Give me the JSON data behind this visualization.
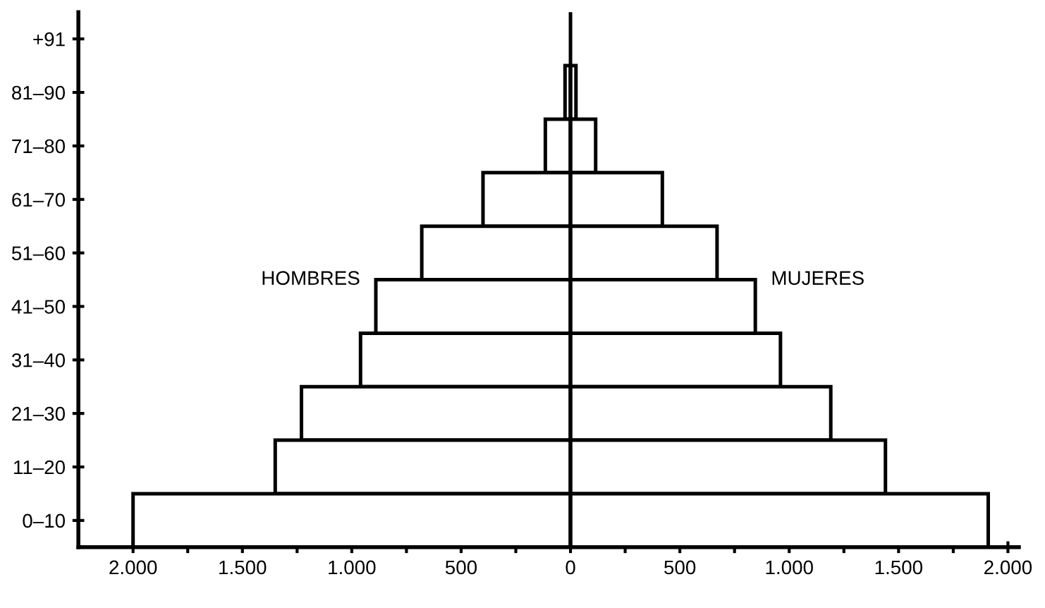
{
  "chart_data": {
    "type": "bar",
    "stacked": true,
    "orientation": "horizontal",
    "categories": [
      "+91",
      "81–90",
      "71–80",
      "61–70",
      "51–60",
      "41–50",
      "31–40",
      "21–30",
      "11–20",
      "0–10"
    ],
    "series": [
      {
        "name": "HOMBRES",
        "color": "#ffffff",
        "values": [
          null,
          -25,
          -115,
          -400,
          -680,
          -890,
          -960,
          -1230,
          -1350,
          -2000
        ]
      },
      {
        "name": "MUJERES",
        "color": "#ffffff",
        "values": [
          null,
          25,
          115,
          420,
          670,
          845,
          960,
          1190,
          1440,
          1910
        ]
      }
    ],
    "xlim": [
      -2250,
      2050
    ],
    "xticks": [
      {
        "value": -2000,
        "label": "2.000"
      },
      {
        "value": -1750,
        "label": null
      },
      {
        "value": -1500,
        "label": "1.500"
      },
      {
        "value": -1250,
        "label": null
      },
      {
        "value": -1000,
        "label": "1.000"
      },
      {
        "value": -750,
        "label": null
      },
      {
        "value": -500,
        "label": "500"
      },
      {
        "value": -250,
        "label": null
      },
      0,
      {
        "value": 250,
        "label": null
      },
      {
        "value": 500,
        "label": "500"
      },
      {
        "value": 750,
        "label": null
      },
      {
        "value": 1000,
        "label": "1.000"
      },
      {
        "value": 1250,
        "label": null
      },
      {
        "value": 1500,
        "label": "1.500"
      },
      {
        "value": 1750,
        "label": null
      },
      {
        "value": 2000,
        "label": "2.000"
      }
    ],
    "ref_lines": [
      {
        "axis": "x",
        "value": 0,
        "color": "#000000"
      }
    ],
    "grid": false,
    "legend": false
  }
}
